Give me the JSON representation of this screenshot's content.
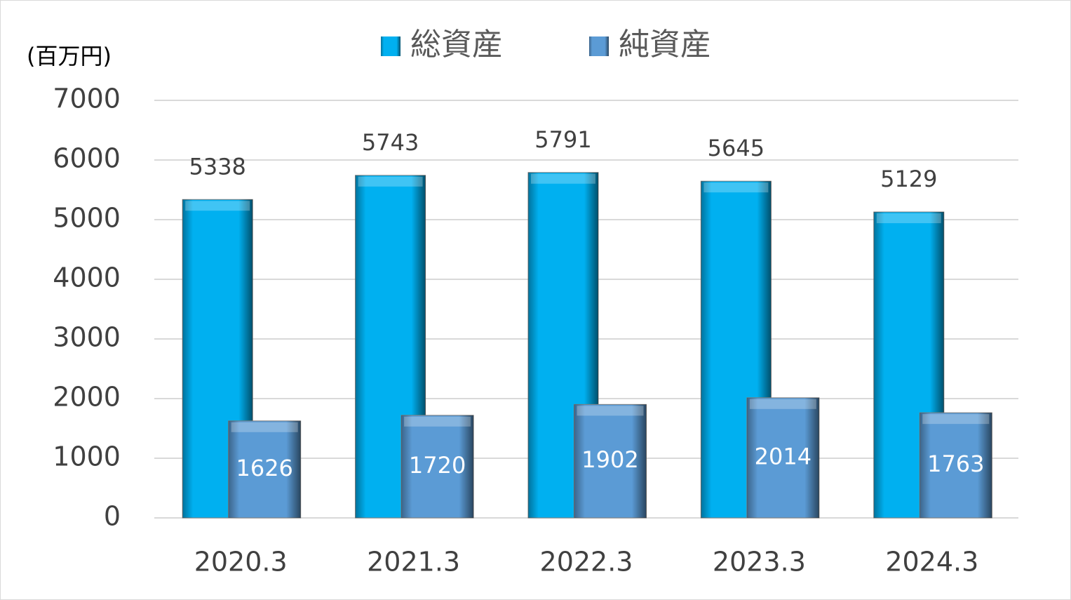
{
  "chart_data": {
    "type": "bar",
    "unit_label": "(百万円)",
    "categories": [
      "2020.3",
      "2021.3",
      "2022.3",
      "2023.3",
      "2024.3"
    ],
    "series": [
      {
        "name": "総資産",
        "color": "#00b0f0",
        "values": [
          5338,
          5743,
          5791,
          5645,
          5129
        ]
      },
      {
        "name": "純資産",
        "color": "#5b9bd5",
        "values": [
          1626,
          1720,
          1902,
          2014,
          1763
        ]
      }
    ],
    "ylim": [
      0,
      7000
    ],
    "yticks": [
      0,
      1000,
      2000,
      3000,
      4000,
      5000,
      6000,
      7000
    ],
    "grid": true
  }
}
